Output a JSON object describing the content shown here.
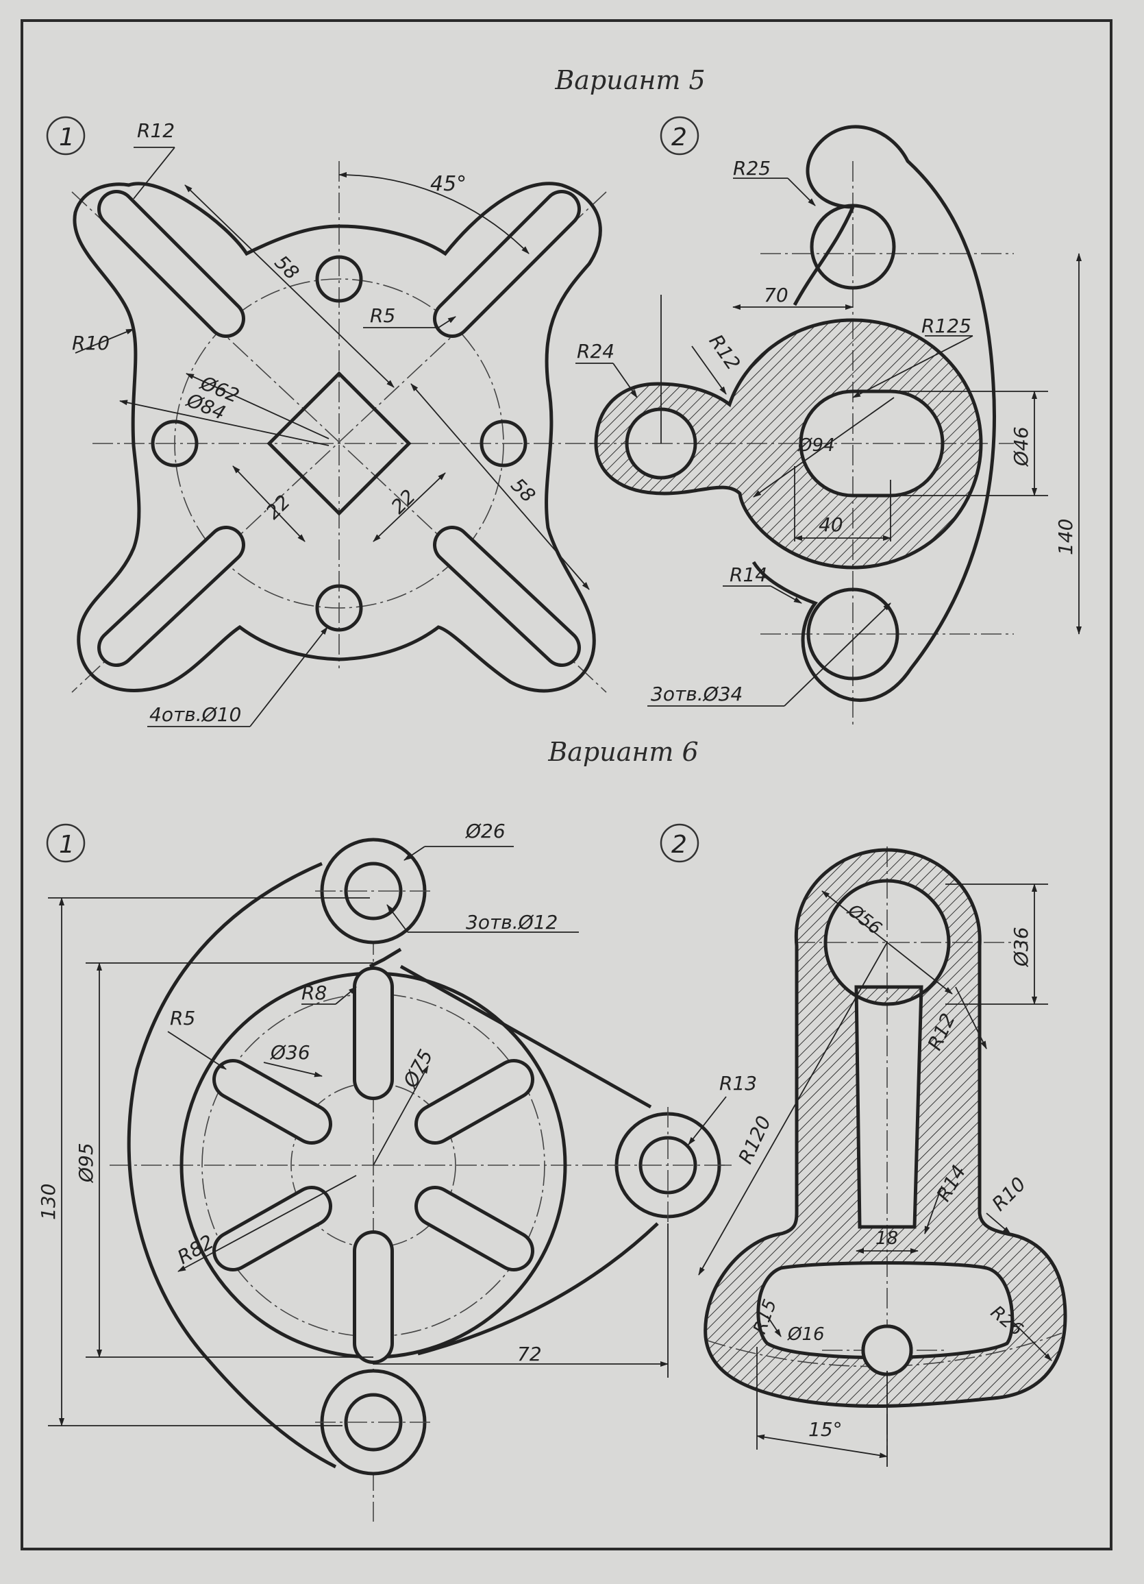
{
  "variant5": {
    "title": "Вариант 5",
    "fig1": {
      "number": "1",
      "labels": {
        "r12": "R12",
        "angle": "45°",
        "d58a": "58",
        "r5": "R5",
        "r10": "R10",
        "d62": "Ø62",
        "d84": "Ø84",
        "d22a": "22",
        "d22b": "22",
        "d58b": "58",
        "holes": "4отв.Ø10"
      }
    },
    "fig2": {
      "number": "2",
      "labels": {
        "r25": "R25",
        "d70": "70",
        "r125": "R125",
        "r24": "R24",
        "r12": "R12",
        "d94": "Ø94",
        "d46": "Ø46",
        "d140": "140",
        "d40": "40",
        "r14": "R14",
        "holes": "3отв.Ø34"
      }
    }
  },
  "variant6": {
    "title": "Вариант 6",
    "fig1": {
      "number": "1",
      "labels": {
        "d26": "Ø26",
        "holes": "3отв.Ø12",
        "d130": "130",
        "r8": "R8",
        "r5": "R5",
        "d36": "Ø36",
        "d75": "Ø75",
        "d95": "Ø95",
        "r13": "R13",
        "r82": "R82",
        "d72": "72"
      }
    },
    "fig2": {
      "number": "2",
      "labels": {
        "d56": "Ø56",
        "d36": "Ø36",
        "r12": "R12",
        "r120": "R120",
        "r14": "R14",
        "r10": "R10",
        "d18": "18",
        "r15": "R15",
        "d16": "Ø16",
        "r26": "R26",
        "angle": "15°"
      }
    }
  }
}
